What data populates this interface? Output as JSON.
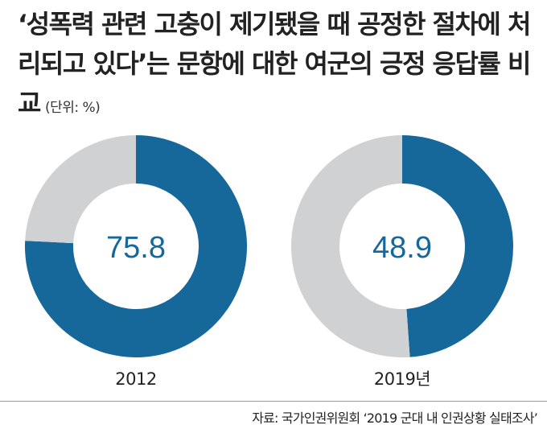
{
  "title": {
    "text": "‘성폭력 관련 고충이 제기됐을 때 공정한 절차에 처리되고 있다’는 문항에 대한 여군의 긍정 응답률 비교",
    "unit": "(단위: %)"
  },
  "source": "자료: 국가인권위원회 ‘2019 군대 내 인권상황 실태조사’",
  "colors": {
    "positive": "#16679a",
    "remainder": "#d0d1d3",
    "center_text": "#16679a"
  },
  "chart_data": [
    {
      "type": "pie",
      "label": "2012",
      "value_label": "75.8",
      "values": [
        75.8,
        24.2
      ],
      "total": 100
    },
    {
      "type": "pie",
      "label": "2019년",
      "value_label": "48.9",
      "values": [
        48.9,
        51.1
      ],
      "total": 100
    }
  ]
}
